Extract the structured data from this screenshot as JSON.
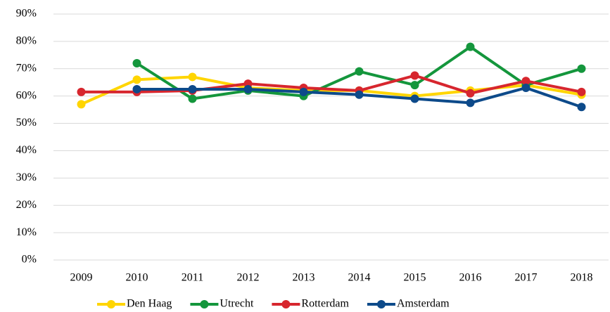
{
  "chart_data": {
    "type": "line",
    "categories": [
      "2009",
      "2010",
      "2011",
      "2012",
      "2013",
      "2014",
      "2015",
      "2016",
      "2017",
      "2018"
    ],
    "series": [
      {
        "name": "Den Haag",
        "color": "#ffd500",
        "values": [
          57,
          66,
          67,
          63,
          62,
          62,
          60,
          62,
          64,
          60.5
        ]
      },
      {
        "name": "Utrecht",
        "color": "#14963c",
        "values": [
          null,
          72,
          59,
          62,
          60,
          69,
          64,
          78,
          64,
          70
        ]
      },
      {
        "name": "Rotterdam",
        "color": "#d7262e",
        "values": [
          61.5,
          61.5,
          62,
          64.5,
          63,
          62,
          67.5,
          61,
          65.5,
          61.5
        ]
      },
      {
        "name": "Amsterdam",
        "color": "#0d4a8a",
        "values": [
          null,
          62.5,
          62.5,
          62.5,
          61.5,
          60.5,
          59,
          57.5,
          63,
          56
        ]
      }
    ],
    "ylim": [
      0,
      90
    ],
    "yticks": [
      {
        "value": 0,
        "label": "0%"
      },
      {
        "value": 10,
        "label": "10%"
      },
      {
        "value": 20,
        "label": "20%"
      },
      {
        "value": 30,
        "label": "30%"
      },
      {
        "value": 40,
        "label": "40%"
      },
      {
        "value": 50,
        "label": "50%"
      },
      {
        "value": 60,
        "label": "60%"
      },
      {
        "value": 70,
        "label": "70%"
      },
      {
        "value": 80,
        "label": "80%"
      },
      {
        "value": 90,
        "label": "90%"
      }
    ],
    "grid": true,
    "legend": "bottom"
  }
}
